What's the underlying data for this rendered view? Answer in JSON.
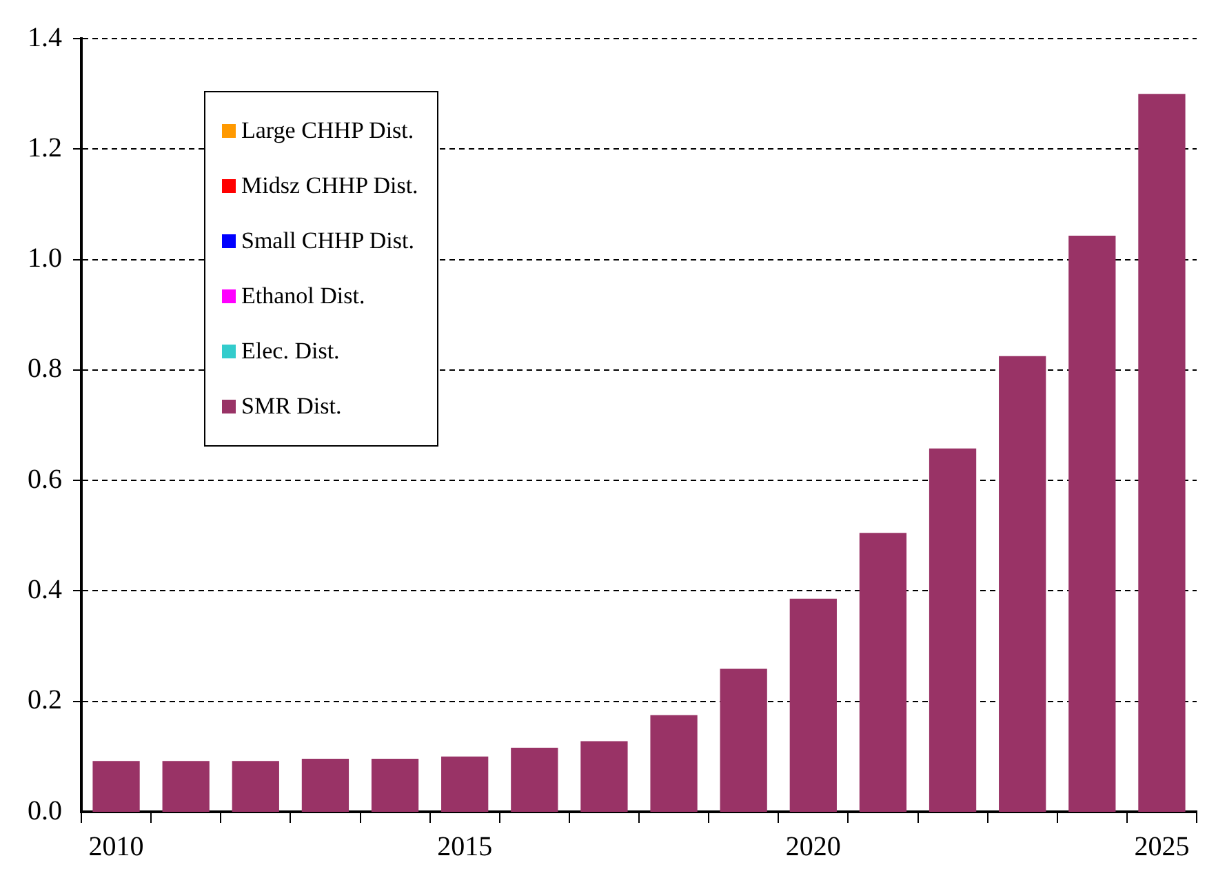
{
  "chart_data": {
    "type": "bar",
    "stacked": true,
    "categories": [
      "2010",
      null,
      null,
      null,
      null,
      "2015",
      null,
      null,
      null,
      null,
      "2020",
      null,
      null,
      null,
      null,
      "2025"
    ],
    "series": [
      {
        "name": "SMR Dist.",
        "color": "#993366",
        "values": [
          0.092,
          0.092,
          0.092,
          0.096,
          0.096,
          0.1,
          0.116,
          0.128,
          0.175,
          0.259,
          0.386,
          0.505,
          0.658,
          0.825,
          1.043,
          1.3
        ]
      },
      {
        "name": "Elec. Dist.",
        "color": "#33cccc",
        "values": [
          0,
          0,
          0,
          0,
          0,
          0,
          0,
          0,
          0,
          0,
          0,
          0,
          0,
          0,
          0,
          0
        ]
      },
      {
        "name": "Ethanol Dist.",
        "color": "#ff00ff",
        "values": [
          0,
          0,
          0,
          0,
          0,
          0,
          0,
          0,
          0,
          0,
          0,
          0,
          0,
          0,
          0,
          0
        ]
      },
      {
        "name": "Small CHHP Dist.",
        "color": "#0000ff",
        "values": [
          0,
          0,
          0,
          0,
          0,
          0,
          0,
          0,
          0,
          0,
          0,
          0,
          0,
          0,
          0,
          0
        ]
      },
      {
        "name": "Midsz CHHP Dist.",
        "color": "#ff0000",
        "values": [
          0,
          0,
          0,
          0,
          0,
          0,
          0,
          0,
          0,
          0,
          0,
          0,
          0,
          0,
          0,
          0
        ]
      },
      {
        "name": "Large CHHP Dist.",
        "color": "#ff9900",
        "values": [
          0,
          0,
          0,
          0,
          0,
          0,
          0,
          0,
          0,
          0,
          0,
          0,
          0,
          0,
          0,
          0
        ]
      }
    ],
    "ylim": [
      0,
      1.4
    ],
    "yticks": [
      {
        "value": 0,
        "label": "0.0"
      },
      {
        "value": 0.2,
        "label": "0.2"
      },
      {
        "value": 0.4,
        "label": "0.4"
      },
      {
        "value": 0.6,
        "label": "0.6"
      },
      {
        "value": 0.8,
        "label": "0.8"
      },
      {
        "value": 1,
        "label": "1.0"
      },
      {
        "value": 1.2,
        "label": "1.2"
      },
      {
        "value": 1.4,
        "label": "1.4"
      }
    ],
    "grid": "y",
    "legend": "top left"
  }
}
